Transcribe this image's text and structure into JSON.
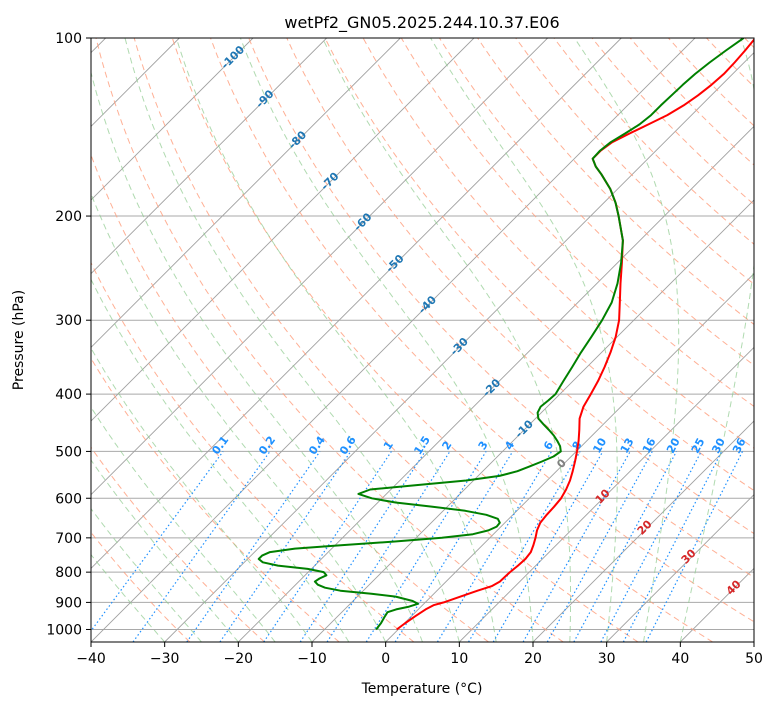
{
  "chart_data": {
    "type": "line",
    "title": "wetPf2_GN05.2025.244.10.37.E06",
    "xlabel": "Temperature (°C)",
    "ylabel": "Pressure (hPa)",
    "xlim": [
      -40,
      50
    ],
    "ylim": [
      1050,
      100
    ],
    "y_scale": "log",
    "skew": true,
    "grid": true,
    "x_ticks": [
      -40,
      -30,
      -20,
      -10,
      0,
      10,
      20,
      30,
      40,
      50
    ],
    "y_ticks": [
      1000,
      900,
      800,
      700,
      600,
      500,
      400,
      300,
      200,
      100
    ],
    "colors": {
      "temperature": "#ff0000",
      "dewpoint": "#008000",
      "grid": "#a9a9a9",
      "isotherm": "#a0a0a0",
      "dry_adiabat": "#ff9c7a",
      "moist_adiabat": "#8fca8f",
      "mixing_ratio": "#1e90ff",
      "isotherm_label": "#1f77b4",
      "dry_label": "#d62728",
      "zero_label": "#808080"
    },
    "series": [
      {
        "key": "temperature",
        "points": [
          [
            1000,
            -0.2
          ],
          [
            975,
            0.1
          ],
          [
            950,
            0.5
          ],
          [
            925,
            1.0
          ],
          [
            910,
            1.5
          ],
          [
            900,
            2.5
          ],
          [
            880,
            4.0
          ],
          [
            860,
            5.5
          ],
          [
            845,
            6.8
          ],
          [
            830,
            7.3
          ],
          [
            800,
            7.4
          ],
          [
            780,
            7.6
          ],
          [
            760,
            7.7
          ],
          [
            740,
            7.5
          ],
          [
            720,
            6.9
          ],
          [
            700,
            6.2
          ],
          [
            680,
            5.4
          ],
          [
            660,
            4.8
          ],
          [
            640,
            4.6
          ],
          [
            620,
            4.5
          ],
          [
            600,
            4.3
          ],
          [
            580,
            3.8
          ],
          [
            560,
            3.1
          ],
          [
            540,
            2.2
          ],
          [
            520,
            1.2
          ],
          [
            500,
            0.1
          ],
          [
            480,
            -1.1
          ],
          [
            460,
            -2.5
          ],
          [
            440,
            -4.0
          ],
          [
            420,
            -5.1
          ],
          [
            400,
            -5.8
          ],
          [
            380,
            -6.6
          ],
          [
            360,
            -7.6
          ],
          [
            340,
            -8.8
          ],
          [
            320,
            -10.2
          ],
          [
            300,
            -12.0
          ],
          [
            280,
            -14.3
          ],
          [
            260,
            -16.8
          ],
          [
            240,
            -19.4
          ],
          [
            220,
            -22.3
          ],
          [
            200,
            -26.2
          ],
          [
            190,
            -28.4
          ],
          [
            180,
            -31.0
          ],
          [
            170,
            -34.2
          ],
          [
            165,
            -36.0
          ],
          [
            160,
            -37.5
          ],
          [
            155,
            -37.5
          ],
          [
            150,
            -37.1
          ],
          [
            145,
            -35.9
          ],
          [
            140,
            -34.6
          ],
          [
            135,
            -33.3
          ],
          [
            130,
            -32.4
          ],
          [
            125,
            -31.8
          ],
          [
            120,
            -31.4
          ],
          [
            115,
            -31.2
          ],
          [
            110,
            -31.3
          ],
          [
            105,
            -31.5
          ],
          [
            100,
            -31.8
          ]
        ]
      },
      {
        "key": "dewpoint",
        "points": [
          [
            1000,
            -3.0
          ],
          [
            975,
            -3.2
          ],
          [
            950,
            -3.6
          ],
          [
            935,
            -3.8
          ],
          [
            925,
            -3.0
          ],
          [
            915,
            -1.6
          ],
          [
            905,
            -0.8
          ],
          [
            895,
            -1.9
          ],
          [
            880,
            -4.8
          ],
          [
            870,
            -8.5
          ],
          [
            860,
            -13.1
          ],
          [
            850,
            -15.6
          ],
          [
            840,
            -17.0
          ],
          [
            830,
            -17.8
          ],
          [
            820,
            -17.6
          ],
          [
            810,
            -17.1
          ],
          [
            800,
            -17.9
          ],
          [
            790,
            -20.5
          ],
          [
            780,
            -25.0
          ],
          [
            770,
            -27.5
          ],
          [
            760,
            -28.5
          ],
          [
            750,
            -28.5
          ],
          [
            740,
            -27.9
          ],
          [
            730,
            -25.0
          ],
          [
            720,
            -19.0
          ],
          [
            710,
            -12.4
          ],
          [
            700,
            -6.5
          ],
          [
            690,
            -2.8
          ],
          [
            680,
            -1.2
          ],
          [
            670,
            -0.6
          ],
          [
            660,
            -0.7
          ],
          [
            650,
            -1.5
          ],
          [
            640,
            -3.6
          ],
          [
            630,
            -7.0
          ],
          [
            620,
            -12.0
          ],
          [
            610,
            -17.6
          ],
          [
            600,
            -21.4
          ],
          [
            590,
            -23.8
          ],
          [
            580,
            -22.8
          ],
          [
            570,
            -17.1
          ],
          [
            560,
            -11.0
          ],
          [
            550,
            -7.1
          ],
          [
            540,
            -5.3
          ],
          [
            530,
            -4.3
          ],
          [
            520,
            -3.3
          ],
          [
            510,
            -2.4
          ],
          [
            500,
            -2.1
          ],
          [
            490,
            -2.9
          ],
          [
            480,
            -4.0
          ],
          [
            470,
            -5.2
          ],
          [
            460,
            -6.6
          ],
          [
            450,
            -8.1
          ],
          [
            440,
            -9.6
          ],
          [
            430,
            -10.5
          ],
          [
            420,
            -10.9
          ],
          [
            410,
            -10.7
          ],
          [
            400,
            -10.6
          ],
          [
            380,
            -11.3
          ],
          [
            360,
            -12.0
          ],
          [
            340,
            -12.8
          ],
          [
            320,
            -13.5
          ],
          [
            300,
            -14.3
          ],
          [
            280,
            -15.4
          ],
          [
            260,
            -17.2
          ],
          [
            240,
            -19.5
          ],
          [
            220,
            -22.3
          ],
          [
            200,
            -26.2
          ],
          [
            190,
            -28.4
          ],
          [
            180,
            -31.0
          ],
          [
            170,
            -34.2
          ],
          [
            165,
            -36.0
          ],
          [
            160,
            -37.5
          ],
          [
            155,
            -37.6
          ],
          [
            150,
            -37.3
          ],
          [
            145,
            -36.5
          ],
          [
            140,
            -35.8
          ],
          [
            135,
            -35.5
          ],
          [
            130,
            -35.5
          ],
          [
            125,
            -35.4
          ],
          [
            120,
            -35.3
          ],
          [
            115,
            -35.1
          ],
          [
            110,
            -34.7
          ],
          [
            105,
            -34.1
          ],
          [
            100,
            -33.4
          ]
        ]
      }
    ],
    "isotherm_labels": [
      "-100",
      "-90",
      "-80",
      "-70",
      "-60",
      "-50",
      "-40",
      "-30",
      "-20",
      "-10"
    ],
    "dry_adiabat_labels": [
      "0",
      "10",
      "20",
      "30",
      "40"
    ],
    "mixing_ratio_labels": [
      "0.1",
      "0.2",
      "0.4",
      "0.6",
      "1",
      "1.5",
      "2",
      "3",
      "4",
      "6",
      "8",
      "10",
      "13",
      "16",
      "20",
      "25",
      "30",
      "36"
    ]
  }
}
